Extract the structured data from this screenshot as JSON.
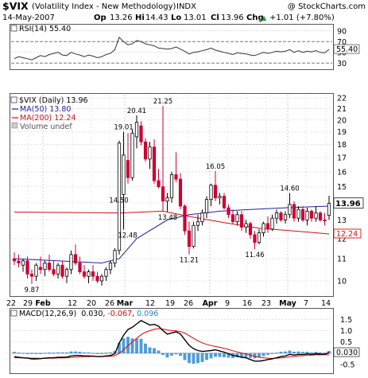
{
  "header": {
    "ticker": "$VIX",
    "name": "(Volatility Index - New Methodology)",
    "exchange": "INDX",
    "watermark": "@ StockCharts.com",
    "date": "14-May-2007",
    "open_label": "Op",
    "open": "13.26",
    "high_label": "Hi",
    "high": "14.43",
    "low_label": "Lo",
    "low": "13.01",
    "close_label": "Cl",
    "close": "13.96",
    "change_label": "Chg",
    "change": "+1.01 (+7.80%)",
    "change_arrow": "▲"
  },
  "rsi": {
    "legend": "RSI(14) 55.40",
    "last_tag": "55.40",
    "last": 55.4,
    "ticks": [
      "90",
      "70",
      "50",
      "30"
    ]
  },
  "price_legend": {
    "line1": "$VIX (Daily) 13.96",
    "line2": "MA(50) 13.80",
    "line3": "MA(200) 12.24",
    "line4": "Volume undef"
  },
  "price_axis": {
    "ticks": [
      "22",
      "21",
      "20",
      "19",
      "18",
      "17",
      "16",
      "15",
      "14",
      "13",
      "12",
      "11",
      "10"
    ],
    "last_close_tag": "13.96",
    "ma200_tag": "12.24"
  },
  "annotations": [
    "9.87",
    "19.01",
    "20.41",
    "21.25",
    "14.50",
    "12.48",
    "13.48",
    "11.21",
    "16.05",
    "11.46",
    "14.60"
  ],
  "x_axis": {
    "labels": [
      "22",
      "29",
      "Feb",
      "12",
      "20",
      "26",
      "Mar",
      "12",
      "19",
      "26",
      "Apr",
      "9",
      "16",
      "23",
      "May",
      "7",
      "14"
    ]
  },
  "macd": {
    "legend_prefix": "MACD(12,26,9)",
    "macd_value": "0.030",
    "signal_value": "-0.067",
    "hist_value": "0.096",
    "ticks": [
      "1.5",
      "1.0",
      "0.5",
      "-0.5"
    ],
    "last_tag": "0.030"
  },
  "colors": {
    "up": "#ffffff",
    "down": "#cc0033",
    "ma50": "#22229a",
    "ma200": "#cc1111",
    "rsi_line": "#333333",
    "macd_line": "#000000",
    "signal_line": "#dd0000",
    "histogram": "#4f9ed8"
  },
  "chart_data": {
    "type": "candlestick",
    "title": "$VIX (Volatility Index - New Methodology) INDX",
    "y_range": [
      9.4,
      22.3
    ],
    "y_scale": "log",
    "candles": [
      {
        "o": 11.0,
        "h": 11.3,
        "l": 10.7,
        "c": 10.9
      },
      {
        "o": 10.9,
        "h": 11.2,
        "l": 10.6,
        "c": 10.8
      },
      {
        "o": 10.7,
        "h": 11.0,
        "l": 10.4,
        "c": 10.9
      },
      {
        "o": 10.9,
        "h": 11.1,
        "l": 10.1,
        "c": 10.3
      },
      {
        "o": 10.3,
        "h": 10.5,
        "l": 9.87,
        "c": 10.2
      },
      {
        "o": 10.2,
        "h": 10.8,
        "l": 10.0,
        "c": 10.7
      },
      {
        "o": 10.6,
        "h": 11.1,
        "l": 10.3,
        "c": 10.5
      },
      {
        "o": 10.5,
        "h": 10.9,
        "l": 10.2,
        "c": 10.8
      },
      {
        "o": 10.8,
        "h": 11.2,
        "l": 10.4,
        "c": 10.5
      },
      {
        "o": 10.5,
        "h": 10.9,
        "l": 10.2,
        "c": 10.3
      },
      {
        "o": 10.3,
        "h": 10.8,
        "l": 10.1,
        "c": 10.7
      },
      {
        "o": 10.7,
        "h": 10.9,
        "l": 10.1,
        "c": 10.2
      },
      {
        "o": 10.2,
        "h": 10.6,
        "l": 9.9,
        "c": 10.5
      },
      {
        "o": 10.5,
        "h": 11.4,
        "l": 10.3,
        "c": 11.2
      },
      {
        "o": 11.2,
        "h": 11.7,
        "l": 10.7,
        "c": 10.8
      },
      {
        "o": 10.8,
        "h": 11.1,
        "l": 10.3,
        "c": 10.4
      },
      {
        "o": 10.4,
        "h": 10.7,
        "l": 10.1,
        "c": 10.2
      },
      {
        "o": 10.2,
        "h": 10.5,
        "l": 9.9,
        "c": 10.4
      },
      {
        "o": 10.4,
        "h": 10.7,
        "l": 10.0,
        "c": 10.2
      },
      {
        "o": 10.2,
        "h": 10.4,
        "l": 9.9,
        "c": 10.0
      },
      {
        "o": 10.0,
        "h": 10.3,
        "l": 9.8,
        "c": 10.2
      },
      {
        "o": 10.2,
        "h": 10.6,
        "l": 10.0,
        "c": 10.5
      },
      {
        "o": 10.5,
        "h": 10.9,
        "l": 10.3,
        "c": 10.8
      },
      {
        "o": 10.8,
        "h": 11.5,
        "l": 10.6,
        "c": 11.4
      },
      {
        "o": 11.4,
        "h": 18.3,
        "l": 11.2,
        "c": 18.1
      },
      {
        "o": 14.5,
        "h": 19.01,
        "l": 12.48,
        "c": 17.2
      },
      {
        "o": 16.8,
        "h": 18.9,
        "l": 15.2,
        "c": 15.6
      },
      {
        "o": 15.6,
        "h": 19.2,
        "l": 15.4,
        "c": 18.9
      },
      {
        "o": 18.6,
        "h": 20.41,
        "l": 17.7,
        "c": 19.8
      },
      {
        "o": 19.5,
        "h": 19.9,
        "l": 17.9,
        "c": 18.2
      },
      {
        "o": 18.2,
        "h": 18.5,
        "l": 16.7,
        "c": 16.9
      },
      {
        "o": 16.9,
        "h": 18.2,
        "l": 16.2,
        "c": 17.8
      },
      {
        "o": 17.8,
        "h": 18.4,
        "l": 15.2,
        "c": 15.4
      },
      {
        "o": 15.4,
        "h": 16.2,
        "l": 14.9,
        "c": 15.0
      },
      {
        "o": 15.0,
        "h": 21.25,
        "l": 13.48,
        "c": 14.1
      },
      {
        "o": 14.1,
        "h": 14.6,
        "l": 13.48,
        "c": 14.3
      },
      {
        "o": 14.3,
        "h": 16.0,
        "l": 14.0,
        "c": 15.8
      },
      {
        "o": 15.8,
        "h": 17.4,
        "l": 15.3,
        "c": 15.5
      },
      {
        "o": 15.5,
        "h": 15.9,
        "l": 13.6,
        "c": 13.8
      },
      {
        "o": 13.8,
        "h": 13.9,
        "l": 12.2,
        "c": 12.4
      },
      {
        "o": 12.4,
        "h": 12.9,
        "l": 11.21,
        "c": 11.6
      },
      {
        "o": 11.6,
        "h": 12.9,
        "l": 11.5,
        "c": 12.7
      },
      {
        "o": 12.7,
        "h": 13.3,
        "l": 12.4,
        "c": 12.9
      },
      {
        "o": 12.9,
        "h": 13.6,
        "l": 12.7,
        "c": 13.4
      },
      {
        "o": 13.4,
        "h": 14.4,
        "l": 13.1,
        "c": 14.2
      },
      {
        "o": 14.2,
        "h": 15.2,
        "l": 13.8,
        "c": 15.1
      },
      {
        "o": 15.1,
        "h": 16.05,
        "l": 14.1,
        "c": 14.3
      },
      {
        "o": 14.3,
        "h": 14.6,
        "l": 13.9,
        "c": 14.4
      },
      {
        "o": 14.4,
        "h": 14.6,
        "l": 13.6,
        "c": 13.7
      },
      {
        "o": 13.7,
        "h": 13.9,
        "l": 13.1,
        "c": 13.3
      },
      {
        "o": 13.3,
        "h": 13.6,
        "l": 12.8,
        "c": 12.9
      },
      {
        "o": 12.9,
        "h": 13.5,
        "l": 12.7,
        "c": 13.3
      },
      {
        "o": 13.3,
        "h": 13.5,
        "l": 12.4,
        "c": 12.6
      },
      {
        "o": 12.6,
        "h": 13.0,
        "l": 12.3,
        "c": 12.8
      },
      {
        "o": 12.8,
        "h": 12.9,
        "l": 12.0,
        "c": 12.2
      },
      {
        "o": 12.2,
        "h": 12.4,
        "l": 11.46,
        "c": 11.8
      },
      {
        "o": 11.8,
        "h": 12.5,
        "l": 11.7,
        "c": 12.3
      },
      {
        "o": 12.3,
        "h": 12.9,
        "l": 12.1,
        "c": 12.8
      },
      {
        "o": 12.8,
        "h": 13.2,
        "l": 12.3,
        "c": 12.5
      },
      {
        "o": 12.5,
        "h": 13.3,
        "l": 12.4,
        "c": 13.1
      },
      {
        "o": 13.1,
        "h": 13.6,
        "l": 12.8,
        "c": 13.4
      },
      {
        "o": 13.4,
        "h": 13.5,
        "l": 12.9,
        "c": 13.0
      },
      {
        "o": 13.0,
        "h": 13.5,
        "l": 12.8,
        "c": 13.3
      },
      {
        "o": 13.3,
        "h": 14.6,
        "l": 13.1,
        "c": 13.9
      },
      {
        "o": 13.9,
        "h": 14.1,
        "l": 12.9,
        "c": 13.1
      },
      {
        "o": 13.1,
        "h": 13.8,
        "l": 12.9,
        "c": 13.6
      },
      {
        "o": 13.6,
        "h": 13.8,
        "l": 12.9,
        "c": 13.0
      },
      {
        "o": 13.0,
        "h": 13.7,
        "l": 12.7,
        "c": 13.5
      },
      {
        "o": 13.5,
        "h": 13.6,
        "l": 12.9,
        "c": 13.1
      },
      {
        "o": 13.1,
        "h": 13.8,
        "l": 12.9,
        "c": 13.4
      },
      {
        "o": 13.4,
        "h": 13.5,
        "l": 12.9,
        "c": 13.0
      },
      {
        "o": 13.0,
        "h": 13.4,
        "l": 12.7,
        "c": 12.95
      },
      {
        "o": 13.26,
        "h": 14.43,
        "l": 13.01,
        "c": 13.96
      }
    ],
    "ma50": [
      [
        0,
        11.0
      ],
      [
        10,
        10.9
      ],
      [
        20,
        10.8
      ],
      [
        24,
        11.0
      ],
      [
        28,
        12.0
      ],
      [
        35,
        13.0
      ],
      [
        40,
        13.3
      ],
      [
        47,
        13.5
      ],
      [
        54,
        13.6
      ],
      [
        62,
        13.7
      ],
      [
        72,
        13.8
      ]
    ],
    "ma200": [
      [
        0,
        13.45
      ],
      [
        24,
        13.4
      ],
      [
        34,
        13.5
      ],
      [
        40,
        13.2
      ],
      [
        48,
        12.85
      ],
      [
        56,
        12.55
      ],
      [
        64,
        12.4
      ],
      [
        72,
        12.24
      ]
    ],
    "rsi_values": [
      38,
      42,
      40,
      38,
      36,
      40,
      44,
      42,
      46,
      48,
      50,
      45,
      44,
      50,
      47,
      45,
      42,
      45,
      43,
      40,
      42,
      46,
      48,
      55,
      78,
      70,
      64,
      66,
      72,
      70,
      66,
      64,
      62,
      58,
      57,
      56,
      57,
      60,
      56,
      52,
      47,
      50,
      51,
      53,
      55,
      58,
      54,
      52,
      50,
      48,
      46,
      49,
      48,
      47,
      45,
      44,
      47,
      50,
      48,
      50,
      52,
      51,
      52,
      55,
      50,
      53,
      50,
      52,
      51,
      53,
      50,
      49,
      55.4
    ],
    "macd_values": [
      -0.15,
      -0.18,
      -0.2,
      -0.22,
      -0.25,
      -0.25,
      -0.24,
      -0.22,
      -0.2,
      -0.2,
      -0.18,
      -0.18,
      -0.17,
      -0.12,
      -0.1,
      -0.1,
      -0.12,
      -0.12,
      -0.13,
      -0.15,
      -0.15,
      -0.12,
      -0.1,
      -0.02,
      0.45,
      0.8,
      1.05,
      1.15,
      1.3,
      1.45,
      1.35,
      1.25,
      1.28,
      1.2,
      1.0,
      0.85,
      0.9,
      0.95,
      0.85,
      0.6,
      0.35,
      0.2,
      0.12,
      0.08,
      0.1,
      0.12,
      0.15,
      0.1,
      0.05,
      -0.02,
      -0.1,
      -0.12,
      -0.18,
      -0.2,
      -0.28,
      -0.35,
      -0.35,
      -0.32,
      -0.28,
      -0.25,
      -0.2,
      -0.15,
      -0.12,
      -0.05,
      -0.08,
      -0.05,
      -0.06,
      -0.03,
      -0.05,
      -0.02,
      -0.04,
      -0.05,
      0.03
    ],
    "signal_values": [
      -0.2,
      -0.2,
      -0.21,
      -0.21,
      -0.22,
      -0.22,
      -0.23,
      -0.23,
      -0.22,
      -0.22,
      -0.21,
      -0.21,
      -0.2,
      -0.19,
      -0.17,
      -0.16,
      -0.15,
      -0.15,
      -0.14,
      -0.14,
      -0.14,
      -0.14,
      -0.13,
      -0.11,
      -0.0,
      0.15,
      0.33,
      0.5,
      0.66,
      0.82,
      0.93,
      1.0,
      1.06,
      1.09,
      1.07,
      1.03,
      1.0,
      0.99,
      0.96,
      0.89,
      0.78,
      0.66,
      0.55,
      0.46,
      0.39,
      0.34,
      0.3,
      0.26,
      0.22,
      0.17,
      0.11,
      0.06,
      0.01,
      -0.03,
      -0.08,
      -0.13,
      -0.18,
      -0.2,
      -0.22,
      -0.23,
      -0.22,
      -0.21,
      -0.19,
      -0.16,
      -0.14,
      -0.12,
      -0.11,
      -0.09,
      -0.08,
      -0.07,
      -0.07,
      -0.068,
      -0.067
    ]
  }
}
